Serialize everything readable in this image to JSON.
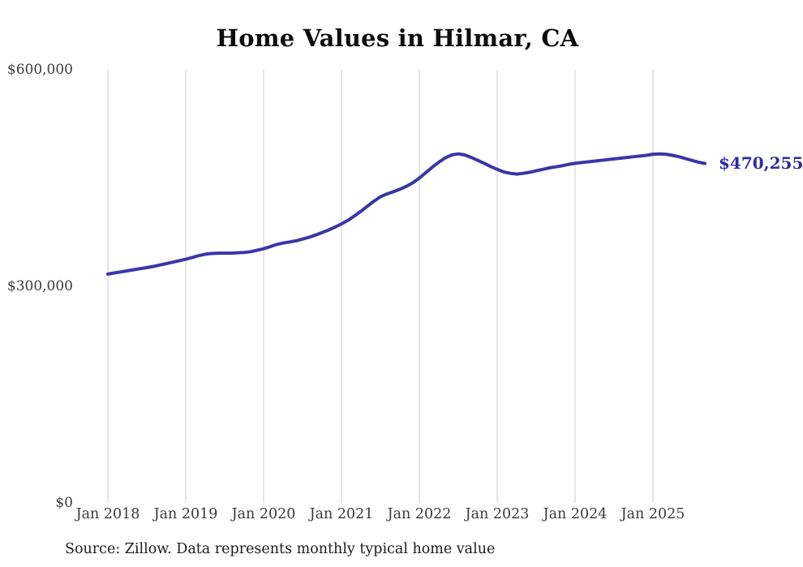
{
  "title": "Home Values in Hilmar, CA",
  "source_note": "Source: Zillow. Data represents monthly typical home value",
  "end_value_label": "$470,255",
  "colors": {
    "line": "#3c35a8",
    "end_label": "#2f2aa3",
    "grid": "#cccccc",
    "tick_text": "#3a3a3a",
    "title_text": "#0d0d0d",
    "source_text": "#1c1c1c",
    "background": "#ffffff"
  },
  "y_axis": {
    "tick_labels": [
      "$600,000",
      "$300,000",
      "$0"
    ],
    "tick_values": [
      600000,
      300000,
      0
    ],
    "min": 0,
    "max": 600000
  },
  "x_axis": {
    "tick_labels": [
      "Jan 2018",
      "Jan 2019",
      "Jan 2020",
      "Jan 2021",
      "Jan 2022",
      "Jan 2023",
      "Jan 2024",
      "Jan 2025"
    ],
    "months_between_ticks": 12
  },
  "chart_data": {
    "type": "line",
    "title": "Home Values in Hilmar, CA",
    "series_name": "Monthly typical home value",
    "ylim": [
      0,
      600000
    ],
    "grid": "vertical-only",
    "legend": "none",
    "last_point_label": "$470,255",
    "x": [
      "2018-01",
      "2018-02",
      "2018-03",
      "2018-04",
      "2018-05",
      "2018-06",
      "2018-07",
      "2018-08",
      "2018-09",
      "2018-10",
      "2018-11",
      "2018-12",
      "2019-01",
      "2019-02",
      "2019-03",
      "2019-04",
      "2019-05",
      "2019-06",
      "2019-07",
      "2019-08",
      "2019-09",
      "2019-10",
      "2019-11",
      "2019-12",
      "2020-01",
      "2020-02",
      "2020-03",
      "2020-04",
      "2020-05",
      "2020-06",
      "2020-07",
      "2020-08",
      "2020-09",
      "2020-10",
      "2020-11",
      "2020-12",
      "2021-01",
      "2021-02",
      "2021-03",
      "2021-04",
      "2021-05",
      "2021-06",
      "2021-07",
      "2021-08",
      "2021-09",
      "2021-10",
      "2021-11",
      "2021-12",
      "2022-01",
      "2022-02",
      "2022-03",
      "2022-04",
      "2022-05",
      "2022-06",
      "2022-07",
      "2022-08",
      "2022-09",
      "2022-10",
      "2022-11",
      "2022-12",
      "2023-01",
      "2023-02",
      "2023-03",
      "2023-04",
      "2023-05",
      "2023-06",
      "2023-07",
      "2023-08",
      "2023-09",
      "2023-10",
      "2023-11",
      "2023-12",
      "2024-01",
      "2024-02",
      "2024-03",
      "2024-04",
      "2024-05",
      "2024-06",
      "2024-07",
      "2024-08",
      "2024-09",
      "2024-10",
      "2024-11",
      "2024-12",
      "2025-01",
      "2025-02",
      "2025-03",
      "2025-04",
      "2025-05",
      "2025-06",
      "2025-07",
      "2025-08",
      "2025-09"
    ],
    "values": [
      317000,
      318500,
      320000,
      321500,
      323000,
      324500,
      326000,
      327500,
      329500,
      331500,
      333500,
      335500,
      337500,
      340000,
      342500,
      344500,
      345500,
      346000,
      346000,
      346000,
      346500,
      347000,
      348000,
      350000,
      352000,
      355000,
      358000,
      360000,
      361500,
      363000,
      365500,
      368000,
      371000,
      374500,
      378000,
      382000,
      386500,
      391500,
      397500,
      404000,
      411000,
      418000,
      424000,
      428000,
      431000,
      434500,
      438500,
      443500,
      450000,
      457500,
      465000,
      472000,
      478000,
      482000,
      483500,
      482000,
      478500,
      474500,
      470500,
      466000,
      462000,
      458500,
      456500,
      455500,
      456500,
      458000,
      460000,
      462000,
      464000,
      465500,
      467000,
      469000,
      470500,
      471500,
      472500,
      473500,
      474500,
      475500,
      476500,
      477500,
      478500,
      479500,
      480500,
      481500,
      483000,
      483500,
      483000,
      481500,
      479500,
      477000,
      474500,
      472000,
      470255
    ]
  }
}
